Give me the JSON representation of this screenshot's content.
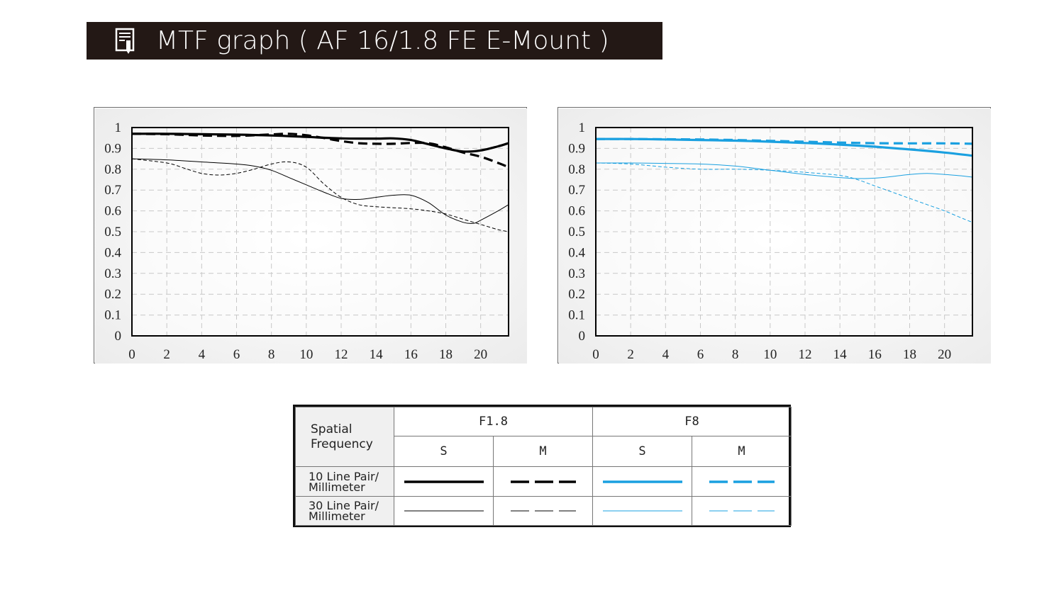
{
  "header": {
    "title": "MTF graph ( AF 16/1.8 FE   E-Mount )",
    "icon": "document-pen-icon"
  },
  "colors": {
    "title_bg": "#231815",
    "f18_line": "#000000",
    "f8_line": "#1aa0e0",
    "grid": "#c8c8c8"
  },
  "chart_data": [
    {
      "type": "line",
      "title": "",
      "xlabel": "",
      "ylabel": "",
      "xlim": [
        0,
        21.6
      ],
      "ylim": [
        0,
        1
      ],
      "x_ticks": [
        "0",
        "2",
        "4",
        "6",
        "8",
        "10",
        "12",
        "14",
        "16",
        "18",
        "20"
      ],
      "y_ticks": [
        "0",
        "0.1",
        "0.2",
        "0.3",
        "0.4",
        "0.5",
        "0.6",
        "0.7",
        "0.8",
        "0.9",
        "1"
      ],
      "grid": true,
      "series": [
        {
          "name": "10 Line Pair/Millimeter S",
          "style": "solid-thick",
          "color": "#000000",
          "x": [
            0,
            2,
            4,
            6,
            8,
            10,
            12,
            14,
            15,
            16,
            17,
            18,
            19,
            20,
            21,
            21.6
          ],
          "y": [
            0.97,
            0.97,
            0.968,
            0.966,
            0.962,
            0.955,
            0.948,
            0.947,
            0.948,
            0.94,
            0.92,
            0.9,
            0.885,
            0.89,
            0.91,
            0.925
          ]
        },
        {
          "name": "10 Line Pair/Millimeter M",
          "style": "dashed-thick",
          "color": "#000000",
          "x": [
            0,
            2,
            4,
            6,
            8,
            9,
            10,
            11,
            12,
            13,
            14,
            15,
            16,
            17,
            18,
            19,
            20,
            21,
            21.6
          ],
          "y": [
            0.97,
            0.968,
            0.962,
            0.96,
            0.967,
            0.97,
            0.963,
            0.95,
            0.935,
            0.925,
            0.922,
            0.922,
            0.926,
            0.925,
            0.905,
            0.88,
            0.86,
            0.83,
            0.81
          ]
        },
        {
          "name": "30 Line Pair/Millimeter S",
          "style": "solid-thin",
          "color": "#000000",
          "x": [
            0,
            2,
            4,
            6,
            7,
            8,
            9,
            10,
            11,
            12,
            13,
            14,
            15,
            16,
            17,
            18,
            19,
            19.6,
            20,
            21,
            21.6
          ],
          "y": [
            0.85,
            0.845,
            0.835,
            0.825,
            0.815,
            0.795,
            0.76,
            0.725,
            0.69,
            0.66,
            0.655,
            0.665,
            0.675,
            0.675,
            0.64,
            0.58,
            0.545,
            0.54,
            0.555,
            0.6,
            0.63
          ]
        },
        {
          "name": "30 Line Pair/Millimeter M",
          "style": "dashed-thin",
          "color": "#000000",
          "x": [
            0,
            2,
            3,
            4,
            5,
            6,
            7,
            8,
            9,
            10,
            11,
            12,
            13,
            14,
            15,
            16,
            17,
            18,
            19,
            20,
            21,
            21.6
          ],
          "y": [
            0.85,
            0.83,
            0.805,
            0.78,
            0.772,
            0.78,
            0.8,
            0.825,
            0.835,
            0.81,
            0.73,
            0.665,
            0.63,
            0.62,
            0.615,
            0.61,
            0.6,
            0.585,
            0.56,
            0.535,
            0.51,
            0.5
          ]
        }
      ]
    },
    {
      "type": "line",
      "title": "",
      "xlabel": "",
      "ylabel": "",
      "xlim": [
        0,
        21.6
      ],
      "ylim": [
        0,
        1
      ],
      "x_ticks": [
        "0",
        "2",
        "4",
        "6",
        "8",
        "10",
        "12",
        "14",
        "16",
        "18",
        "20"
      ],
      "y_ticks": [
        "0",
        "0.1",
        "0.2",
        "0.3",
        "0.4",
        "0.5",
        "0.6",
        "0.7",
        "0.8",
        "0.9",
        "1"
      ],
      "grid": true,
      "series": [
        {
          "name": "10 Line Pair/Millimeter S",
          "style": "solid-thick",
          "color": "#1aa0e0",
          "x": [
            0,
            2,
            4,
            6,
            8,
            10,
            12,
            14,
            16,
            18,
            20,
            21.6
          ],
          "y": [
            0.945,
            0.945,
            0.943,
            0.94,
            0.937,
            0.932,
            0.926,
            0.918,
            0.908,
            0.895,
            0.88,
            0.865
          ]
        },
        {
          "name": "10 Line Pair/Millimeter M",
          "style": "dashed-thick",
          "color": "#1aa0e0",
          "x": [
            0,
            2,
            4,
            6,
            8,
            10,
            12,
            14,
            16,
            18,
            20,
            21.6
          ],
          "y": [
            0.945,
            0.945,
            0.944,
            0.943,
            0.94,
            0.936,
            0.932,
            0.928,
            0.925,
            0.924,
            0.924,
            0.922
          ]
        },
        {
          "name": "30 Line Pair/Millimeter S",
          "style": "solid-thin",
          "color": "#1aa0e0",
          "x": [
            0,
            2,
            4,
            6,
            8,
            10,
            12,
            14,
            15,
            16,
            17,
            18,
            19,
            20,
            21,
            21.6
          ],
          "y": [
            0.83,
            0.83,
            0.828,
            0.825,
            0.815,
            0.795,
            0.775,
            0.76,
            0.755,
            0.757,
            0.765,
            0.775,
            0.78,
            0.775,
            0.768,
            0.762
          ]
        },
        {
          "name": "30 Line Pair/Millimeter M",
          "style": "dashed-thin",
          "color": "#1aa0e0",
          "x": [
            0,
            2,
            4,
            6,
            8,
            10,
            12,
            14,
            15,
            16,
            17,
            18,
            19,
            20,
            21,
            21.6
          ],
          "y": [
            0.83,
            0.825,
            0.81,
            0.8,
            0.8,
            0.795,
            0.785,
            0.77,
            0.75,
            0.72,
            0.69,
            0.66,
            0.63,
            0.6,
            0.565,
            0.545
          ]
        }
      ]
    }
  ],
  "legend": {
    "corner_line1": "Spatial",
    "corner_line2": "Frequency",
    "aperture_1": "F1.8",
    "aperture_2": "F8",
    "s_label": "S",
    "m_label": "M",
    "row1_line1": "10 Line Pair/",
    "row1_line2": "Millimeter",
    "row2_line1": "30 Line Pair/",
    "row2_line2": "Millimeter"
  }
}
